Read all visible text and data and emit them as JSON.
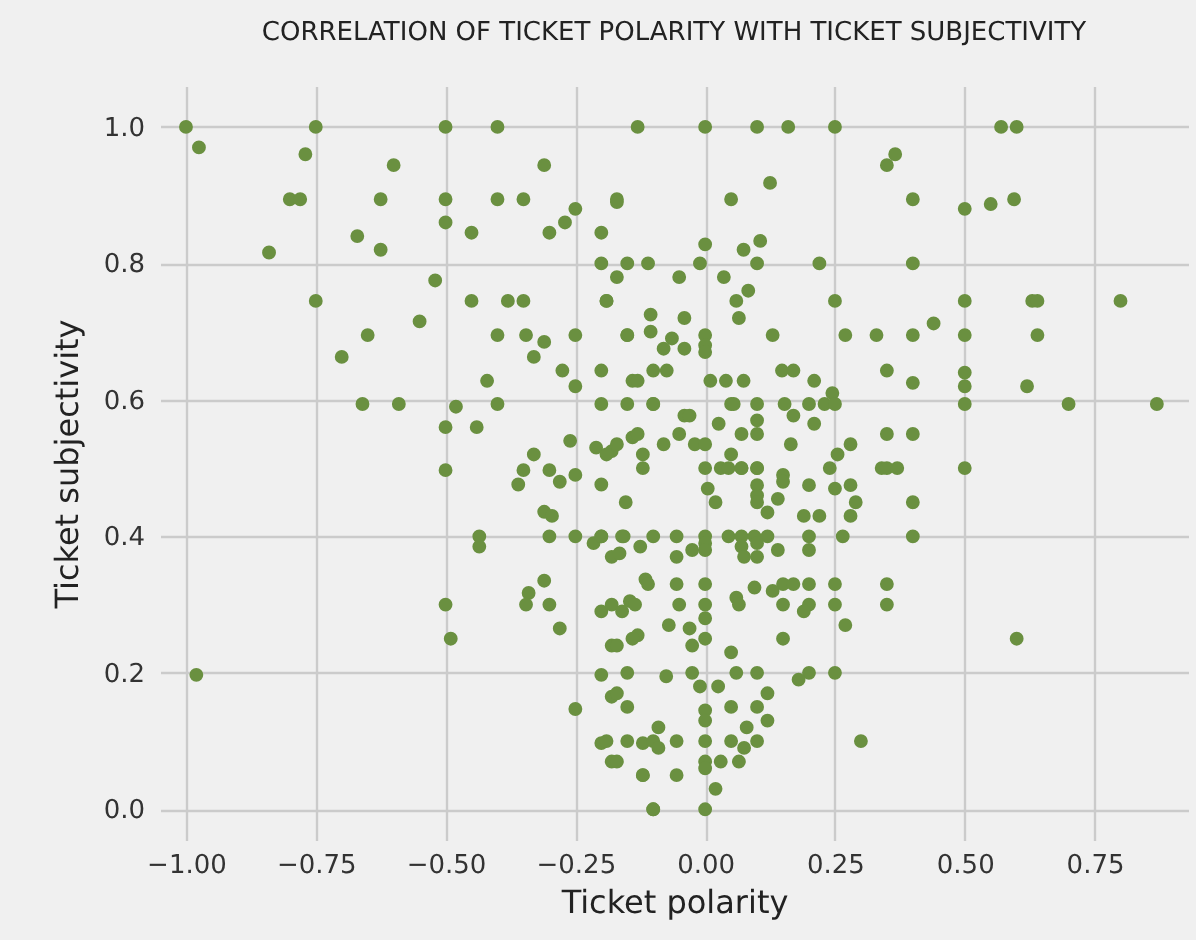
{
  "chart_data": {
    "type": "scatter",
    "title": "CORRELATION OF TICKET POLARITY WITH TICKET SUBJECTIVITY",
    "xlabel": "Ticket polarity",
    "ylabel": "Ticket subjectivity",
    "xlim": [
      -1.05,
      0.93
    ],
    "ylim": [
      -0.045,
      1.06
    ],
    "xticks": [
      {
        "value": -1,
        "label": "−1.00"
      },
      {
        "value": -0.75,
        "label": "−0.75"
      },
      {
        "value": -0.5,
        "label": "−0.50"
      },
      {
        "value": -0.25,
        "label": "−0.25"
      },
      {
        "value": 0,
        "label": "0.00"
      },
      {
        "value": 0.25,
        "label": "0.25"
      },
      {
        "value": 0.5,
        "label": "0.50"
      },
      {
        "value": 0.75,
        "label": "0.75"
      }
    ],
    "yticks": [
      {
        "value": 0,
        "label": "0.0"
      },
      {
        "value": 0.2,
        "label": "0.2"
      },
      {
        "value": 0.4,
        "label": "0.4"
      },
      {
        "value": 0.6,
        "label": "0.6"
      },
      {
        "value": 0.8,
        "label": "0.8"
      },
      {
        "value": 1,
        "label": "1.0"
      }
    ],
    "grid": true,
    "marker": "circle",
    "series": [
      {
        "color": "#6a9040",
        "x": [
          -1.0,
          -0.75,
          -0.5,
          -0.4,
          -0.13,
          0.0,
          0.1,
          0.16,
          0.25,
          0.57,
          0.6,
          -0.975,
          -0.77,
          -0.6,
          -0.31,
          -0.8,
          -0.78,
          -0.625,
          -0.5,
          -0.4,
          -0.35,
          -0.17,
          -0.25,
          -0.27,
          -0.5,
          -0.67,
          -0.45,
          -0.3,
          -0.2,
          -0.84,
          -0.625,
          -0.52,
          -0.75,
          -0.45,
          -0.38,
          -0.35,
          -0.19,
          -0.55,
          -0.65,
          -0.4,
          -0.345,
          -0.25,
          -0.15,
          -0.7,
          -0.33,
          -0.31,
          -0.275,
          -0.2,
          -0.14,
          -0.42,
          -0.66,
          -0.59,
          -0.4,
          -0.25,
          -0.2,
          -0.1,
          -0.5,
          -0.48,
          -0.44,
          -0.26,
          -0.21,
          -0.18,
          -0.14,
          -0.5,
          -0.36,
          -0.33,
          -0.35,
          -0.3,
          -0.28,
          -0.25,
          -0.2,
          -0.31,
          -0.295,
          -0.435,
          -0.3,
          -0.25,
          -0.2,
          -0.157,
          -0.435,
          -0.215,
          -0.18,
          -0.31,
          -0.34,
          -0.345,
          -0.3,
          -0.2,
          -0.18,
          -0.145,
          -0.115,
          -0.5,
          -0.49,
          -0.28,
          -0.13,
          -0.18,
          -0.98,
          -0.2,
          -0.25,
          -0.18,
          -0.2,
          -0.12,
          -0.18,
          -0.12,
          -0.1,
          -0.17,
          0.05,
          0.125,
          0.35,
          0.366,
          0.4,
          0.5,
          0.55,
          0.595,
          0.0,
          0.074,
          0.106,
          -0.2,
          -0.15,
          -0.11,
          -0.01,
          0.1,
          0.22,
          0.4,
          -0.17,
          -0.05,
          0.036,
          -0.19,
          0.06,
          0.25,
          0.5,
          0.63,
          0.64,
          0.8,
          0.083,
          0.065,
          -0.04,
          -0.105,
          -0.105,
          -0.15,
          0.0,
          0.13,
          0.27,
          0.33,
          0.4,
          0.5,
          0.64,
          0.44,
          0.0,
          0.0,
          -0.04,
          -0.064,
          -0.08,
          -0.1,
          -0.074,
          0.148,
          0.17,
          0.35,
          -0.13,
          0.01,
          0.04,
          0.074,
          0.21,
          0.5,
          0.5,
          0.4,
          0.62,
          0.245,
          -0.15,
          -0.1,
          0.05,
          0.055,
          0.1,
          0.153,
          0.2,
          0.23,
          0.25,
          0.5,
          0.7,
          0.87,
          -0.04,
          -0.03,
          0.17,
          0.026,
          0.1,
          0.21,
          -0.13,
          0.07,
          0.1,
          0.35,
          0.4,
          -0.05,
          -0.17,
          -0.08,
          -0.02,
          0.0,
          0.165,
          0.28,
          -0.19,
          -0.12,
          0.05,
          0.255,
          -0.12,
          0.0,
          0.03,
          0.07,
          0.1,
          0.15,
          0.24,
          0.34,
          0.35,
          0.5,
          0.045,
          0.07,
          0.1,
          0.37,
          0.1,
          0.1,
          0.1,
          0.15,
          0.2,
          0.25,
          0.28,
          0.29,
          0.4,
          0.005,
          0.02,
          0.14,
          -0.153,
          0.19,
          0.22,
          0.28,
          0.12,
          -0.2,
          -0.16,
          -0.1,
          -0.055,
          0.0,
          0.045,
          0.07,
          0.095,
          0.12,
          0.2,
          0.265,
          0.4,
          -0.025,
          0.0,
          0.0,
          0.07,
          0.1,
          0.14,
          0.2,
          -0.055,
          0.075,
          0.1,
          -0.125,
          -0.165,
          -0.11,
          -0.055,
          0.0,
          0.15,
          0.17,
          0.2,
          0.25,
          0.35,
          0.095,
          0.13,
          0.06,
          0.065,
          -0.05,
          0.0,
          0.15,
          0.2,
          0.25,
          0.35,
          -0.135,
          -0.16,
          0.19,
          0.0,
          -0.07,
          -0.03,
          0.27,
          0.15,
          0.0,
          0.6,
          -0.14,
          -0.025,
          -0.17,
          0.05,
          0.06,
          0.1,
          0.2,
          0.25,
          0.18,
          -0.15,
          -0.025,
          -0.075,
          -0.01,
          0.025,
          0.12,
          -0.17,
          0.0,
          0.05,
          0.1,
          -0.15,
          0.0,
          0.08,
          0.12,
          -0.09,
          -0.19,
          -0.15,
          -0.1,
          -0.055,
          0.0,
          0.05,
          0.1,
          0.3,
          0.075,
          -0.09,
          -0.17,
          0.0,
          0.0,
          0.03,
          0.065,
          -0.12,
          -0.055,
          0.02,
          -0.1,
          0.0
        ],
        "values": [
          1.0,
          1.0,
          1.0,
          1.0,
          1.0,
          1.0,
          1.0,
          1.0,
          1.0,
          1.0,
          1.0,
          0.97,
          0.96,
          0.944,
          0.944,
          0.894,
          0.894,
          0.894,
          0.894,
          0.894,
          0.894,
          0.894,
          0.88,
          0.86,
          0.86,
          0.84,
          0.845,
          0.845,
          0.845,
          0.816,
          0.82,
          0.775,
          0.745,
          0.745,
          0.745,
          0.745,
          0.745,
          0.715,
          0.695,
          0.695,
          0.695,
          0.695,
          0.695,
          0.663,
          0.663,
          0.685,
          0.643,
          0.643,
          0.628,
          0.628,
          0.594,
          0.594,
          0.594,
          0.62,
          0.594,
          0.594,
          0.56,
          0.59,
          0.56,
          0.54,
          0.53,
          0.525,
          0.545,
          0.497,
          0.476,
          0.52,
          0.497,
          0.497,
          0.48,
          0.49,
          0.476,
          0.436,
          0.43,
          0.4,
          0.4,
          0.4,
          0.4,
          0.4,
          0.385,
          0.39,
          0.37,
          0.335,
          0.317,
          0.3,
          0.3,
          0.29,
          0.3,
          0.305,
          0.337,
          0.3,
          0.25,
          0.265,
          0.255,
          0.24,
          0.197,
          0.197,
          0.147,
          0.165,
          0.097,
          0.097,
          0.07,
          0.05,
          0.0,
          0.89,
          0.894,
          0.918,
          0.944,
          0.96,
          0.894,
          0.88,
          0.887,
          0.894,
          0.828,
          0.82,
          0.833,
          0.8,
          0.8,
          0.8,
          0.8,
          0.8,
          0.8,
          0.8,
          0.78,
          0.78,
          0.78,
          0.745,
          0.745,
          0.745,
          0.745,
          0.745,
          0.745,
          0.745,
          0.76,
          0.72,
          0.72,
          0.725,
          0.7,
          0.695,
          0.695,
          0.695,
          0.695,
          0.695,
          0.695,
          0.695,
          0.695,
          0.712,
          0.68,
          0.67,
          0.675,
          0.69,
          0.675,
          0.643,
          0.643,
          0.643,
          0.643,
          0.643,
          0.628,
          0.628,
          0.628,
          0.628,
          0.628,
          0.64,
          0.62,
          0.625,
          0.62,
          0.61,
          0.594,
          0.594,
          0.594,
          0.594,
          0.594,
          0.594,
          0.594,
          0.594,
          0.594,
          0.594,
          0.594,
          0.594,
          0.577,
          0.577,
          0.577,
          0.565,
          0.57,
          0.565,
          0.55,
          0.55,
          0.55,
          0.55,
          0.55,
          0.55,
          0.535,
          0.535,
          0.535,
          0.535,
          0.535,
          0.535,
          0.52,
          0.52,
          0.52,
          0.52,
          0.5,
          0.5,
          0.5,
          0.5,
          0.5,
          0.49,
          0.5,
          0.5,
          0.5,
          0.5,
          0.5,
          0.5,
          0.5,
          0.5,
          0.475,
          0.46,
          0.45,
          0.48,
          0.475,
          0.47,
          0.475,
          0.45,
          0.45,
          0.47,
          0.45,
          0.455,
          0.45,
          0.43,
          0.43,
          0.43,
          0.435,
          0.4,
          0.4,
          0.4,
          0.4,
          0.4,
          0.4,
          0.4,
          0.4,
          0.4,
          0.4,
          0.4,
          0.4,
          0.38,
          0.39,
          0.38,
          0.385,
          0.39,
          0.38,
          0.38,
          0.37,
          0.37,
          0.37,
          0.385,
          0.375,
          0.33,
          0.33,
          0.33,
          0.33,
          0.33,
          0.33,
          0.33,
          0.33,
          0.325,
          0.32,
          0.31,
          0.3,
          0.3,
          0.3,
          0.3,
          0.3,
          0.3,
          0.3,
          0.3,
          0.29,
          0.29,
          0.28,
          0.27,
          0.265,
          0.27,
          0.25,
          0.25,
          0.25,
          0.25,
          0.24,
          0.24,
          0.23,
          0.2,
          0.2,
          0.2,
          0.2,
          0.19,
          0.2,
          0.2,
          0.195,
          0.18,
          0.18,
          0.17,
          0.17,
          0.145,
          0.15,
          0.15,
          0.15,
          0.13,
          0.12,
          0.13,
          0.12,
          0.1,
          0.1,
          0.1,
          0.1,
          0.1,
          0.1,
          0.1,
          0.1,
          0.09,
          0.09,
          0.07,
          0.07,
          0.06,
          0.07,
          0.07,
          0.05,
          0.05,
          0.03,
          0.0,
          0.0
        ]
      }
    ]
  }
}
